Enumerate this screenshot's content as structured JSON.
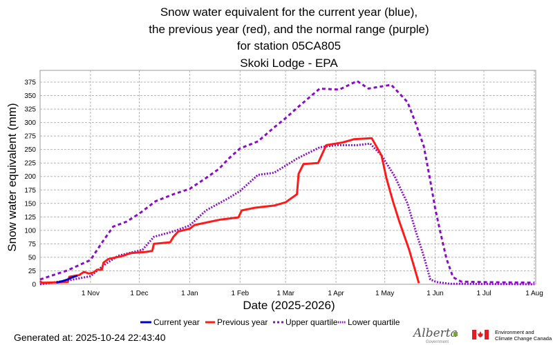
{
  "chart_data": {
    "type": "line",
    "title": [
      "Snow water equivalent for the current year (blue),",
      "the previous year (red), and the normal range (purple)",
      "for station 05CA805",
      "Skoki Lodge - EPA"
    ],
    "xlabel": "Date (2025-2026)",
    "ylabel": "Snow water equivalent (mm)",
    "xlim": [
      "2025-10-01",
      "2026-08-01"
    ],
    "ylim": [
      0,
      397
    ],
    "x_ticks": [
      {
        "date": "2025-11-01",
        "label": "1 Nov"
      },
      {
        "date": "2025-12-01",
        "label": "1 Dec"
      },
      {
        "date": "2026-01-01",
        "label": "1 Jan"
      },
      {
        "date": "2026-02-01",
        "label": "1 Feb"
      },
      {
        "date": "2026-03-01",
        "label": "1 Mar"
      },
      {
        "date": "2026-04-01",
        "label": "1 Apr"
      },
      {
        "date": "2026-05-01",
        "label": "1 May"
      },
      {
        "date": "2026-06-01",
        "label": "1 Jun"
      },
      {
        "date": "2026-07-01",
        "label": "1 Jul"
      },
      {
        "date": "2026-08-01",
        "label": "1 Aug"
      }
    ],
    "y_ticks": [
      0,
      25,
      50,
      75,
      100,
      125,
      150,
      175,
      200,
      225,
      250,
      275,
      300,
      325,
      350,
      375
    ],
    "grid": true,
    "legend_position": "bottom",
    "series": [
      {
        "name": "Current year",
        "color": "#0000c8",
        "style": "solid",
        "points": [
          [
            "2025-10-11",
            3
          ],
          [
            "2025-10-15",
            6
          ],
          [
            "2025-10-18",
            9
          ],
          [
            "2025-10-20",
            12
          ],
          [
            "2025-10-24",
            16
          ]
        ]
      },
      {
        "name": "Previous year",
        "color": "#ff1a1a",
        "style": "solid",
        "points": [
          [
            "2025-10-01",
            6
          ],
          [
            "2025-10-02",
            3
          ],
          [
            "2025-10-18",
            4
          ],
          [
            "2025-10-19",
            14
          ],
          [
            "2025-10-25",
            17
          ],
          [
            "2025-10-28",
            23
          ],
          [
            "2025-10-31",
            20
          ],
          [
            "2025-11-03",
            22
          ],
          [
            "2025-11-05",
            27
          ],
          [
            "2025-11-08",
            27
          ],
          [
            "2025-11-09",
            40
          ],
          [
            "2025-11-12",
            47
          ],
          [
            "2025-11-20",
            52
          ],
          [
            "2025-11-26",
            58
          ],
          [
            "2025-12-05",
            60
          ],
          [
            "2025-12-09",
            62
          ],
          [
            "2025-12-10",
            75
          ],
          [
            "2025-12-20",
            78
          ],
          [
            "2025-12-22",
            88
          ],
          [
            "2025-12-25",
            98
          ],
          [
            "2026-01-01",
            103
          ],
          [
            "2026-01-04",
            110
          ],
          [
            "2026-01-12",
            115
          ],
          [
            "2026-01-20",
            120
          ],
          [
            "2026-01-31",
            124
          ],
          [
            "2026-02-02",
            137
          ],
          [
            "2026-02-10",
            142
          ],
          [
            "2026-02-22",
            146
          ],
          [
            "2026-03-01",
            152
          ],
          [
            "2026-03-08",
            167
          ],
          [
            "2026-03-09",
            205
          ],
          [
            "2026-03-12",
            223
          ],
          [
            "2026-03-21",
            225
          ],
          [
            "2026-03-26",
            258
          ],
          [
            "2026-04-05",
            263
          ],
          [
            "2026-04-12",
            269
          ],
          [
            "2026-04-23",
            271
          ],
          [
            "2026-04-29",
            239
          ],
          [
            "2026-05-02",
            197
          ],
          [
            "2026-05-06",
            154
          ],
          [
            "2026-05-10",
            116
          ],
          [
            "2026-05-16",
            64
          ],
          [
            "2026-05-22",
            2
          ]
        ]
      },
      {
        "name": "Upper quartile",
        "color": "#8a0cc4",
        "style": "dashed",
        "points": [
          [
            "2025-10-01",
            9
          ],
          [
            "2025-10-18",
            26
          ],
          [
            "2025-11-01",
            45
          ],
          [
            "2025-11-08",
            77
          ],
          [
            "2025-11-15",
            107
          ],
          [
            "2025-11-23",
            116
          ],
          [
            "2025-12-01",
            131
          ],
          [
            "2025-12-11",
            154
          ],
          [
            "2025-12-22",
            167
          ],
          [
            "2026-01-01",
            177
          ],
          [
            "2026-01-11",
            197
          ],
          [
            "2026-01-19",
            214
          ],
          [
            "2026-01-25",
            233
          ],
          [
            "2026-02-01",
            252
          ],
          [
            "2026-02-12",
            265
          ],
          [
            "2026-02-22",
            291
          ],
          [
            "2026-03-01",
            308
          ],
          [
            "2026-03-08",
            327
          ],
          [
            "2026-03-22",
            363
          ],
          [
            "2026-04-03",
            361
          ],
          [
            "2026-04-14",
            377
          ],
          [
            "2026-04-21",
            363
          ],
          [
            "2026-05-05",
            370
          ],
          [
            "2026-05-15",
            338
          ],
          [
            "2026-05-20",
            299
          ],
          [
            "2026-05-25",
            256
          ],
          [
            "2026-05-29",
            192
          ],
          [
            "2026-06-01",
            141
          ],
          [
            "2026-06-04",
            99
          ],
          [
            "2026-06-08",
            47
          ],
          [
            "2026-06-12",
            13
          ],
          [
            "2026-06-17",
            5
          ],
          [
            "2026-07-01",
            4
          ],
          [
            "2026-08-01",
            3
          ]
        ]
      },
      {
        "name": "Lower quartile",
        "color": "#8a0cc4",
        "style": "dotted",
        "points": [
          [
            "2025-10-01",
            0
          ],
          [
            "2025-10-20",
            8
          ],
          [
            "2025-11-01",
            15
          ],
          [
            "2025-11-09",
            35
          ],
          [
            "2025-11-18",
            53
          ],
          [
            "2025-12-03",
            64
          ],
          [
            "2025-12-10",
            88
          ],
          [
            "2025-12-22",
            98
          ],
          [
            "2026-01-01",
            109
          ],
          [
            "2026-01-11",
            137
          ],
          [
            "2026-01-25",
            160
          ],
          [
            "2026-02-01",
            173
          ],
          [
            "2026-02-12",
            203
          ],
          [
            "2026-02-22",
            207
          ],
          [
            "2026-03-01",
            220
          ],
          [
            "2026-03-08",
            233
          ],
          [
            "2026-03-22",
            254
          ],
          [
            "2026-04-01",
            258
          ],
          [
            "2026-04-14",
            258
          ],
          [
            "2026-04-22",
            261
          ],
          [
            "2026-04-29",
            239
          ],
          [
            "2026-05-07",
            201
          ],
          [
            "2026-05-15",
            150
          ],
          [
            "2026-05-20",
            99
          ],
          [
            "2026-05-25",
            52
          ],
          [
            "2026-05-29",
            9
          ],
          [
            "2026-06-02",
            4
          ],
          [
            "2026-06-10",
            1
          ],
          [
            "2026-08-01",
            0
          ]
        ]
      }
    ]
  },
  "footer": {
    "generated": "Generated at: 2025-10-24 22:43:40",
    "logo_alberta": "Alberta Government",
    "logo_eccc": "Environment and Climate Change Canada",
    "eccc_line1": "Environment and",
    "eccc_line2": "Climate Change Canada"
  }
}
